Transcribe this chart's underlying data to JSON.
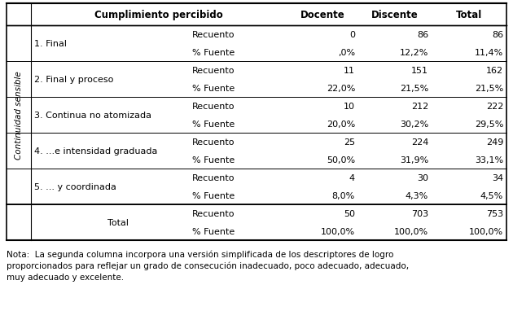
{
  "note": "Nota:  La segunda columna incorpora una versión simplificada de los descriptores de logro\nproporcionados para reflejar un grado de consecución inadecuado, poco adecuado, adecuado,\nmuy adecuado y excelente.",
  "vertical_label": "Continuidad sensible",
  "rows": [
    {
      "category": "1. Final",
      "sub1": "Recuento",
      "docente": "0",
      "discente": "86",
      "total": "86"
    },
    {
      "category": "",
      "sub1": "% Fuente",
      "docente": ",0%",
      "discente": "12,2%",
      "total": "11,4%"
    },
    {
      "category": "2. Final y proceso",
      "sub1": "Recuento",
      "docente": "11",
      "discente": "151",
      "total": "162"
    },
    {
      "category": "",
      "sub1": "% Fuente",
      "docente": "22,0%",
      "discente": "21,5%",
      "total": "21,5%"
    },
    {
      "category": "3. Continua no atomizada",
      "sub1": "Recuento",
      "docente": "10",
      "discente": "212",
      "total": "222"
    },
    {
      "category": "",
      "sub1": "% Fuente",
      "docente": "20,0%",
      "discente": "30,2%",
      "total": "29,5%"
    },
    {
      "category": "4. ...e intensidad graduada",
      "sub1": "Recuento",
      "docente": "25",
      "discente": "224",
      "total": "249"
    },
    {
      "category": "",
      "sub1": "% Fuente",
      "docente": "50,0%",
      "discente": "31,9%",
      "total": "33,1%"
    },
    {
      "category": "5. ... y coordinada",
      "sub1": "Recuento",
      "docente": "4",
      "discente": "30",
      "total": "34"
    },
    {
      "category": "",
      "sub1": "% Fuente",
      "docente": "8,0%",
      "discente": "4,3%",
      "total": "4,5%"
    },
    {
      "category": "Total",
      "sub1": "Recuento",
      "docente": "50",
      "discente": "703",
      "total": "753"
    },
    {
      "category": "",
      "sub1": "% Fuente",
      "docente": "100,0%",
      "discente": "100,0%",
      "total": "100,0%"
    }
  ],
  "bg_color": "#ffffff",
  "line_color": "#000000",
  "text_color": "#000000",
  "font_size": 8.0,
  "header_font_size": 8.5,
  "note_font_size": 7.5
}
